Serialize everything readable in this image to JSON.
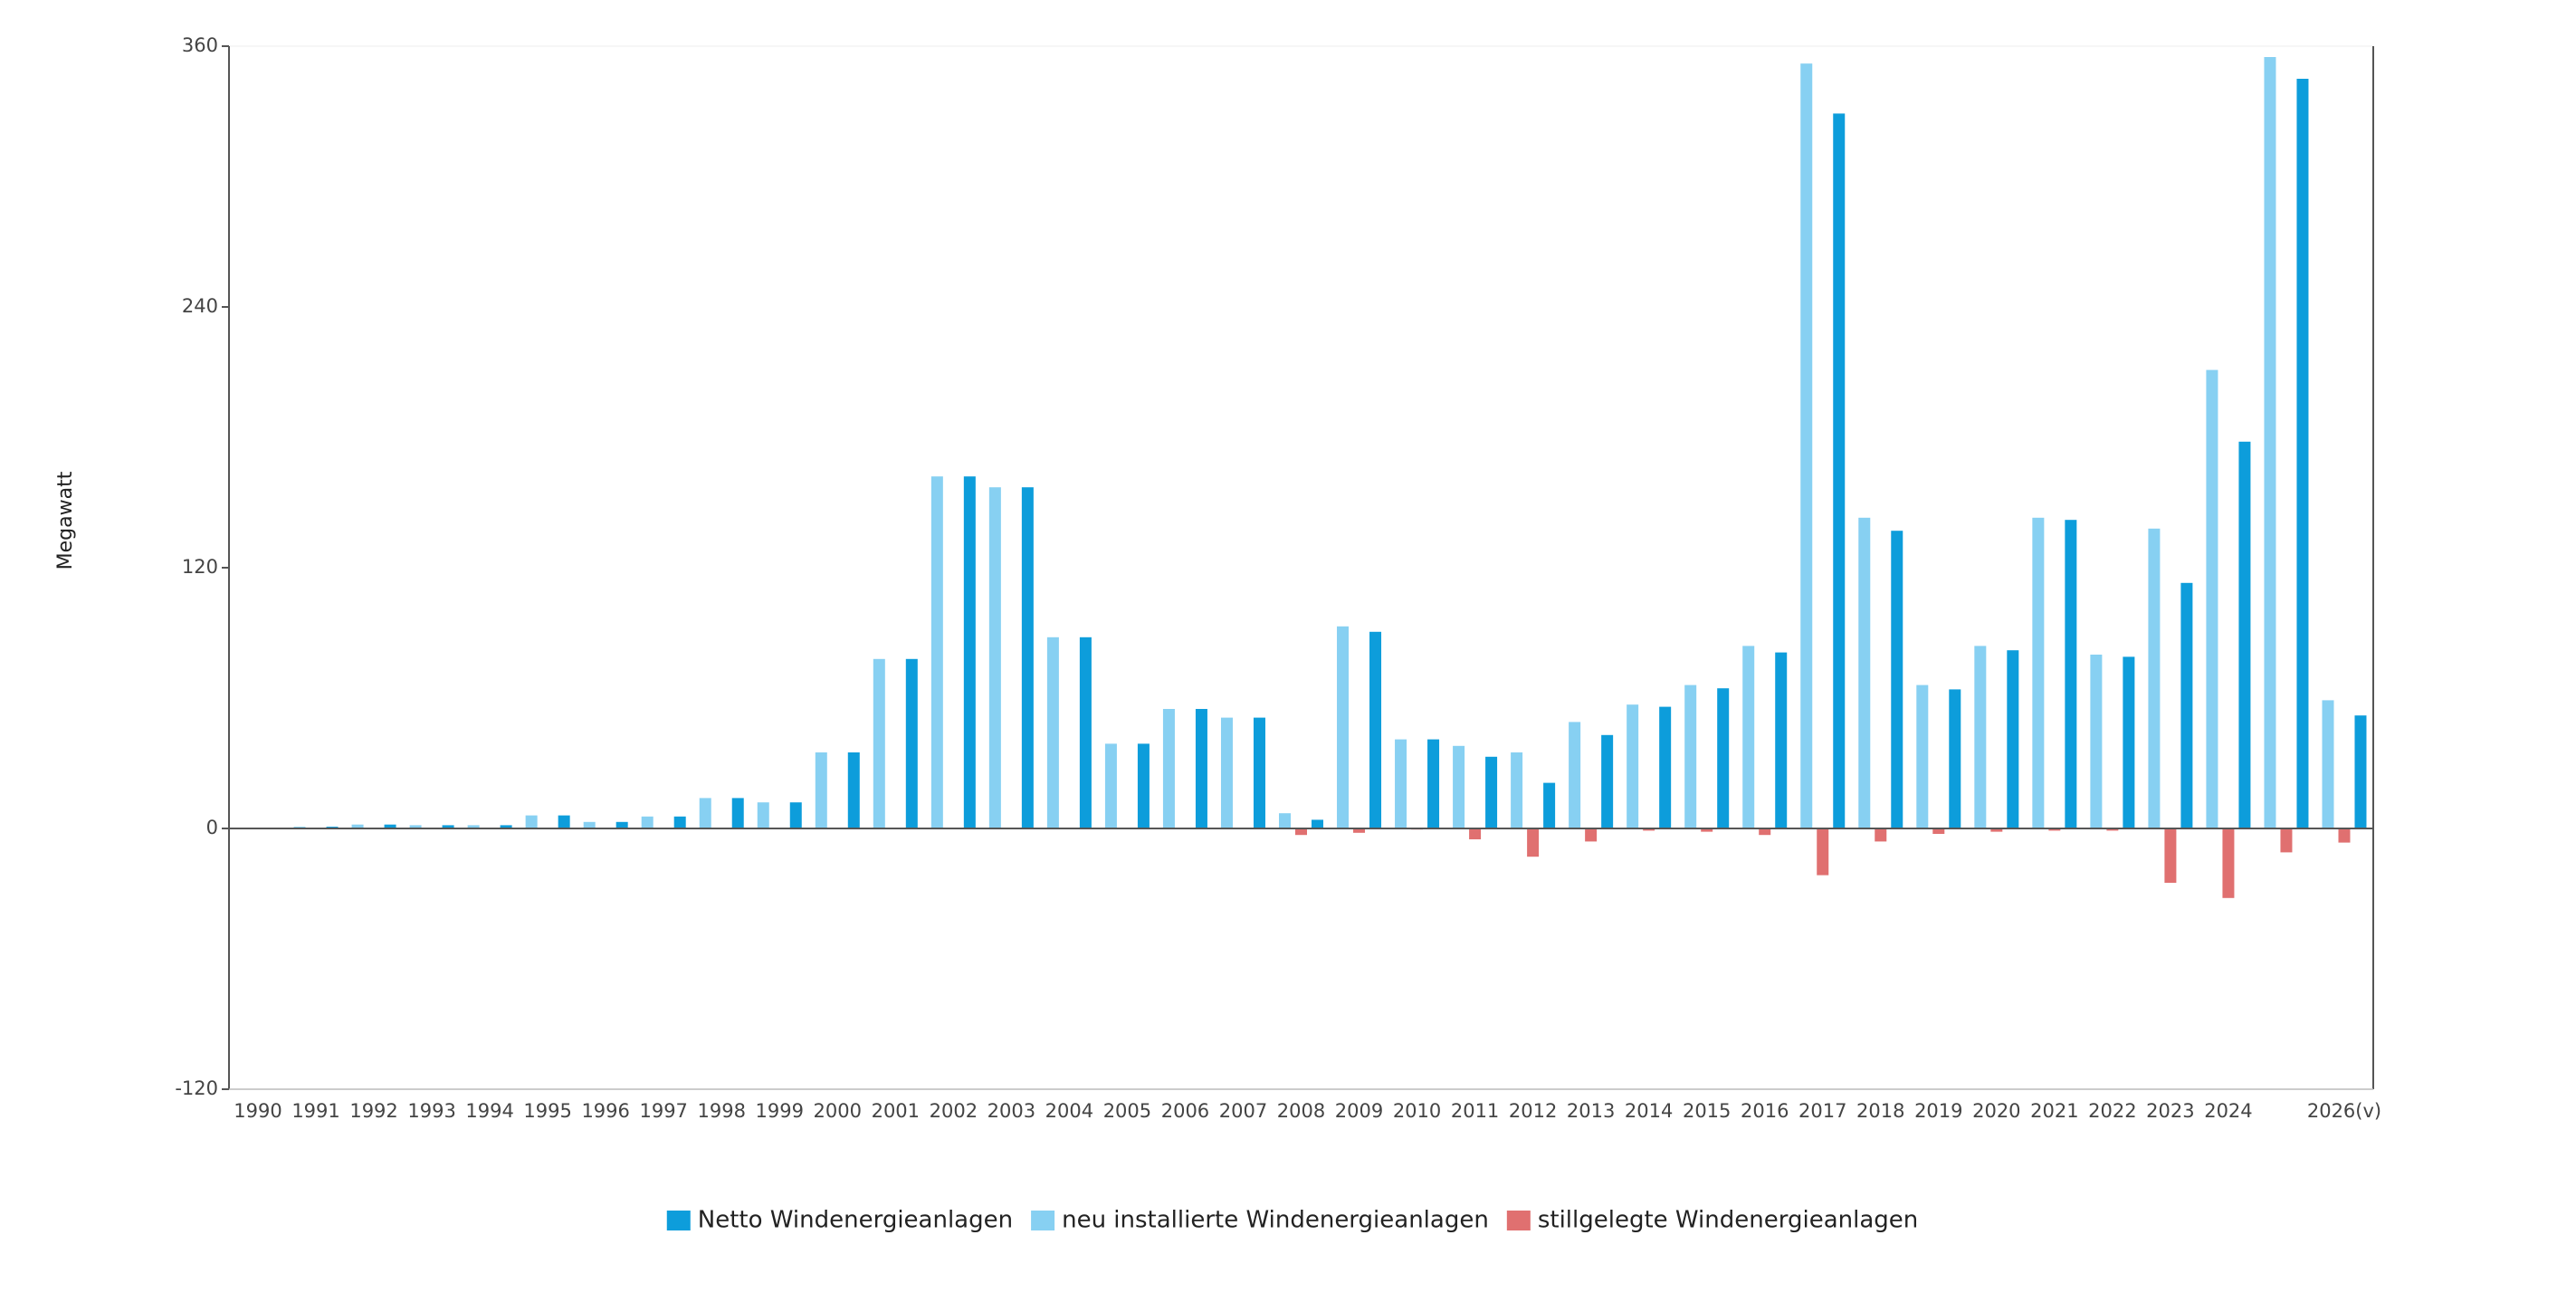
{
  "chart_data": {
    "type": "bar",
    "y_label": "Megawatt",
    "categories": [
      "1990",
      "1991",
      "1992",
      "1993",
      "1994",
      "1995",
      "1996",
      "1997",
      "1998",
      "1999",
      "2000",
      "2001",
      "2002",
      "2003",
      "2004",
      "2005",
      "2006",
      "2007",
      "2008",
      "2009",
      "2010",
      "2011",
      "2012",
      "2013",
      "2014",
      "2015",
      "2016",
      "2017",
      "2018",
      "2019",
      "2020",
      "2021",
      "2022",
      "2023",
      "2024",
      null,
      "2026(v)"
    ],
    "series": [
      {
        "name": "Netto Windenergieanlagen",
        "color": "#0d9ddb",
        "values": [
          0.3,
          0.8,
          1.8,
          1.5,
          1.5,
          6,
          3,
          5.5,
          14,
          12,
          35,
          78,
          162,
          157,
          88,
          39,
          55,
          51,
          4,
          90.5,
          41,
          33,
          21,
          43,
          56,
          64.5,
          81,
          329,
          137,
          64,
          82,
          142,
          79,
          113,
          178,
          345,
          52
        ]
      },
      {
        "name": "neu installierte Windenergieanlagen",
        "color": "#87d0f2",
        "values": [
          0.3,
          0.8,
          1.8,
          1.5,
          1.5,
          6,
          3,
          5.5,
          14,
          12,
          35,
          78,
          162,
          157,
          88,
          39,
          55,
          51,
          7,
          93,
          41,
          38,
          35,
          49,
          57,
          66,
          84,
          352,
          143,
          66,
          84,
          143,
          80,
          138,
          211,
          355,
          59
        ]
      },
      {
        "name": "stillgelegte Windenergieanlagen",
        "color": "#e07070",
        "values": [
          0,
          0,
          0,
          0,
          0,
          0,
          0,
          0,
          0,
          0,
          0,
          0,
          0,
          0,
          0,
          0,
          0,
          0,
          -3,
          -2,
          -0.5,
          -5,
          -13,
          -6,
          -1,
          -1.5,
          -3,
          -21.5,
          -6,
          -2.5,
          -1.5,
          -1,
          -1,
          -25,
          -32,
          -11,
          -6.5
        ]
      }
    ],
    "ylim": [
      -120,
      360
    ],
    "yticks": [
      -120,
      0,
      120,
      240,
      360
    ],
    "legend": "bottom",
    "grid": false
  }
}
